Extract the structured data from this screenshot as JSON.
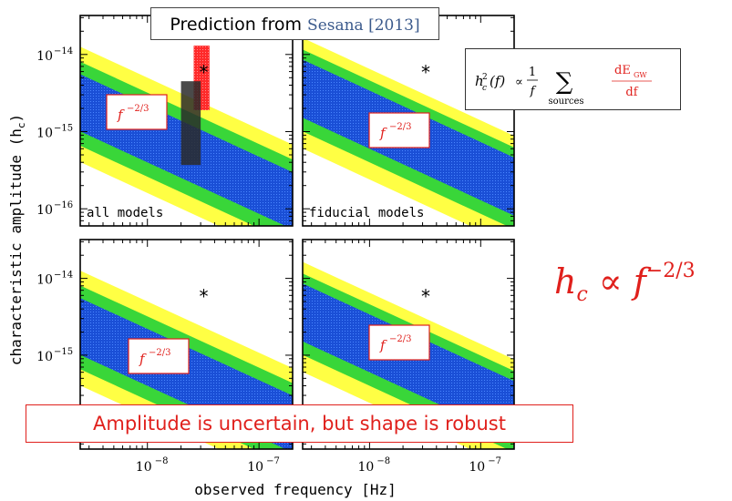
{
  "chart_data": {
    "type": "area",
    "layout": "2x2 grid of panels with shared axes",
    "xlabel": "observed frequency [Hz]",
    "ylabel": "characteristic amplitude (h",
    "ylabel_sub": "c",
    "ylabel_close": ")",
    "x_scale": "log",
    "y_scale": "log",
    "xlim": [
      2.5e-09,
      2e-07
    ],
    "ylim": [
      6e-17,
      3.2e-14
    ],
    "ylim_bottom_row": [
      6e-17,
      3.2e-14
    ],
    "x_ticks": [
      {
        "value": 1e-08,
        "base": "10",
        "exp": "−8"
      },
      {
        "value": 1e-07,
        "base": "10",
        "exp": "−7"
      }
    ],
    "y_ticks": [
      {
        "value": 1e-14,
        "base": "10",
        "exp": "−14"
      },
      {
        "value": 1e-15,
        "base": "10",
        "exp": "−15"
      },
      {
        "value": 1e-16,
        "base": "10",
        "exp": "−16"
      }
    ],
    "slope": -0.6667,
    "band_colors": {
      "outer": "#ffff44",
      "middle": "#39d639",
      "inner": "#1a4fd6",
      "limit_red": "#ff2a2a",
      "limit_dark": "#2a2a2a"
    },
    "panels": [
      {
        "label": "all models",
        "annotation": "f",
        "annotation_exp": "−2/3",
        "bands_at_1e-8": {
          "outer": [
            1.6e-16,
            5e-15
          ],
          "middle": [
            2.6e-16,
            3.2e-15
          ],
          "inner": [
            4e-16,
            2.2e-15
          ]
        },
        "marker": {
          "x": 3.2e-08,
          "y": 6e-15,
          "symbol": "*"
        },
        "limits": [
          {
            "x": [
              2.6e-08,
              3.6e-08
            ],
            "y": [
              1.9e-15,
              1.3e-14
            ],
            "color": "limit_red"
          },
          {
            "x": [
              2e-08,
              3e-08
            ],
            "y": [
              3.7e-16,
              4.5e-15
            ],
            "color": "limit_dark"
          }
        ]
      },
      {
        "label": "fiducial models",
        "annotation": "f",
        "annotation_exp": "−2/3",
        "bands_at_1e-8": {
          "outer": [
            2.4e-16,
            6.5e-15
          ],
          "middle": [
            4e-16,
            4.6e-15
          ],
          "inner": [
            6e-16,
            3.4e-15
          ]
        },
        "marker": {
          "x": 3.2e-08,
          "y": 6e-15,
          "symbol": "*"
        },
        "limits": []
      },
      {
        "label": "",
        "annotation": "f",
        "annotation_exp": "−2/3",
        "bands_at_1e-8": {
          "outer": [
            1.6e-16,
            5e-15
          ],
          "middle": [
            2.6e-16,
            3.2e-15
          ],
          "inner": [
            4e-16,
            2.2e-15
          ]
        },
        "marker": {
          "x": 3.2e-08,
          "y": 6e-15,
          "symbol": "*"
        },
        "limits": []
      },
      {
        "label": "",
        "annotation": "f",
        "annotation_exp": "−2/3",
        "bands_at_1e-8": {
          "outer": [
            2.4e-16,
            6.5e-15
          ],
          "middle": [
            4e-16,
            4.6e-15
          ],
          "inner": [
            6e-16,
            3.4e-15
          ]
        },
        "marker": {
          "x": 3.2e-08,
          "y": 6e-15,
          "symbol": "*"
        },
        "limits": []
      }
    ]
  },
  "callouts": {
    "top": {
      "text": "Prediction from ",
      "cite": "Sesana [2013]"
    },
    "bottom": {
      "text": "Amplitude is uncertain, but shape is robust"
    }
  },
  "formula_box": {
    "lhs": "h",
    "lhs_sub": "c",
    "lhs_sup": "2",
    "lhs_arg": "(f)",
    "prop": "∝",
    "frac_num": "1",
    "frac_den": "f",
    "sum": "∑",
    "sum_sub": "sources",
    "dE_num": "dE",
    "dE_num_sub": "GW",
    "dE_den": "df"
  },
  "big_formula": {
    "base": "h",
    "sub": "c",
    "prop": "∝",
    "f": "f",
    "exp": "−2/3"
  }
}
